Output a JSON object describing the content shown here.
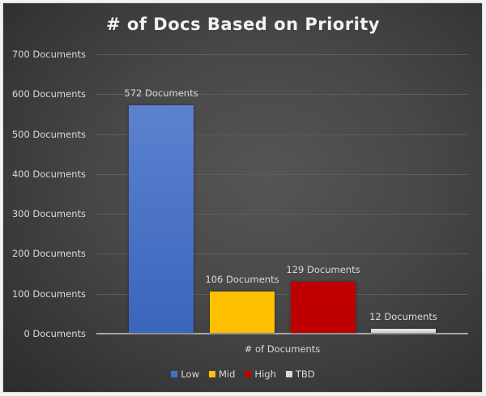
{
  "chart_data": {
    "type": "bar",
    "title": "# of Docs Based on Priority",
    "xlabel": "# of Documents",
    "ylabel": "",
    "categories": [
      "# of Documents"
    ],
    "series": [
      {
        "name": "Low",
        "values": [
          572
        ],
        "color": "#4472c4",
        "label": "572 Documents"
      },
      {
        "name": "Mid",
        "values": [
          106
        ],
        "color": "#ffc000",
        "label": "106 Documents"
      },
      {
        "name": "High",
        "values": [
          129
        ],
        "color": "#c00000",
        "label": "129 Documents"
      },
      {
        "name": "TBD",
        "values": [
          12
        ],
        "color": "#d9d9d9",
        "label": "12 Documents"
      }
    ],
    "ylim": [
      0,
      700
    ],
    "yticks": [
      "0 Documents",
      "100 Documents",
      "200 Documents",
      "300 Documents",
      "400 Documents",
      "500 Documents",
      "600 Documents",
      "700 Documents"
    ],
    "grid": true,
    "legend_position": "bottom"
  }
}
